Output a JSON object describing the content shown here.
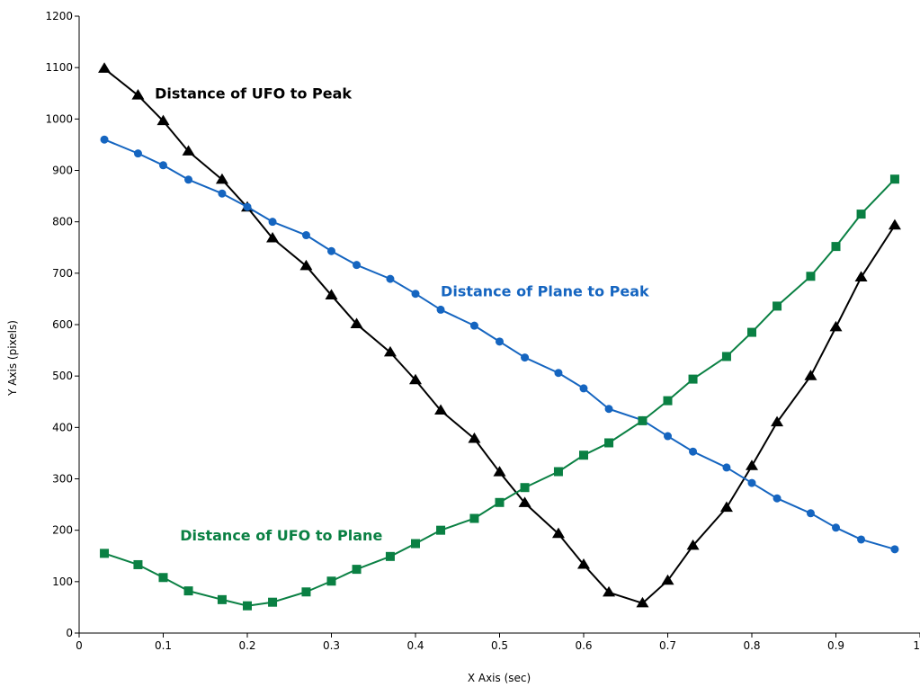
{
  "chart_data": {
    "type": "line",
    "xlabel": "X Axis (sec)",
    "ylabel": "Y Axis (pixels)",
    "xlim": [
      0,
      1
    ],
    "ylim": [
      0,
      1200
    ],
    "x_ticks": [
      "0",
      "0.1",
      "0.2",
      "0.3",
      "0.4",
      "0.5",
      "0.6",
      "0.7",
      "0.8",
      "0.9",
      "1"
    ],
    "y_ticks": [
      "0",
      "100",
      "200",
      "300",
      "400",
      "500",
      "600",
      "700",
      "800",
      "900",
      "1000",
      "1100",
      "1200"
    ],
    "grid": false,
    "legend": "none",
    "x": [
      0.03,
      0.07,
      0.1,
      0.13,
      0.17,
      0.2,
      0.23,
      0.27,
      0.3,
      0.33,
      0.37,
      0.4,
      0.43,
      0.47,
      0.5,
      0.53,
      0.57,
      0.6,
      0.63,
      0.67,
      0.7,
      0.73,
      0.77,
      0.8,
      0.83,
      0.87,
      0.9,
      0.93,
      0.97
    ],
    "series": [
      {
        "name": "Distance of UFO to Peak",
        "color": "#000000",
        "marker": "triangle",
        "values": [
          1098,
          1046,
          996,
          937,
          882,
          828,
          768,
          714,
          657,
          601,
          546,
          492,
          433,
          378,
          313,
          253,
          193,
          133,
          79,
          58,
          102,
          170,
          244,
          325,
          410,
          500,
          595,
          692,
          793
        ]
      },
      {
        "name": "Distance of Plane to Peak",
        "color": "#1565c0",
        "marker": "circle",
        "values": [
          960,
          933,
          910,
          882,
          855,
          829,
          800,
          774,
          743,
          716,
          689,
          660,
          629,
          598,
          567,
          536,
          506,
          476,
          436,
          414,
          383,
          353,
          322,
          292,
          262,
          233,
          205,
          182,
          163
        ]
      },
      {
        "name": "Distance of UFO to Plane",
        "color": "#0a8043",
        "marker": "square",
        "values": [
          155,
          133,
          108,
          82,
          65,
          53,
          60,
          80,
          101,
          124,
          149,
          174,
          200,
          223,
          254,
          283,
          314,
          346,
          370,
          413,
          452,
          494,
          538,
          585,
          636,
          694,
          752,
          815,
          883
        ]
      }
    ],
    "annotations": [
      {
        "text": "Distance of UFO to Peak",
        "series": 0,
        "x": 0.09,
        "y": 1040
      },
      {
        "text": "Distance of Plane to Peak",
        "series": 1,
        "x": 0.43,
        "y": 655
      },
      {
        "text": "Distance of UFO to Plane",
        "series": 2,
        "x": 0.12,
        "y": 180
      }
    ]
  }
}
